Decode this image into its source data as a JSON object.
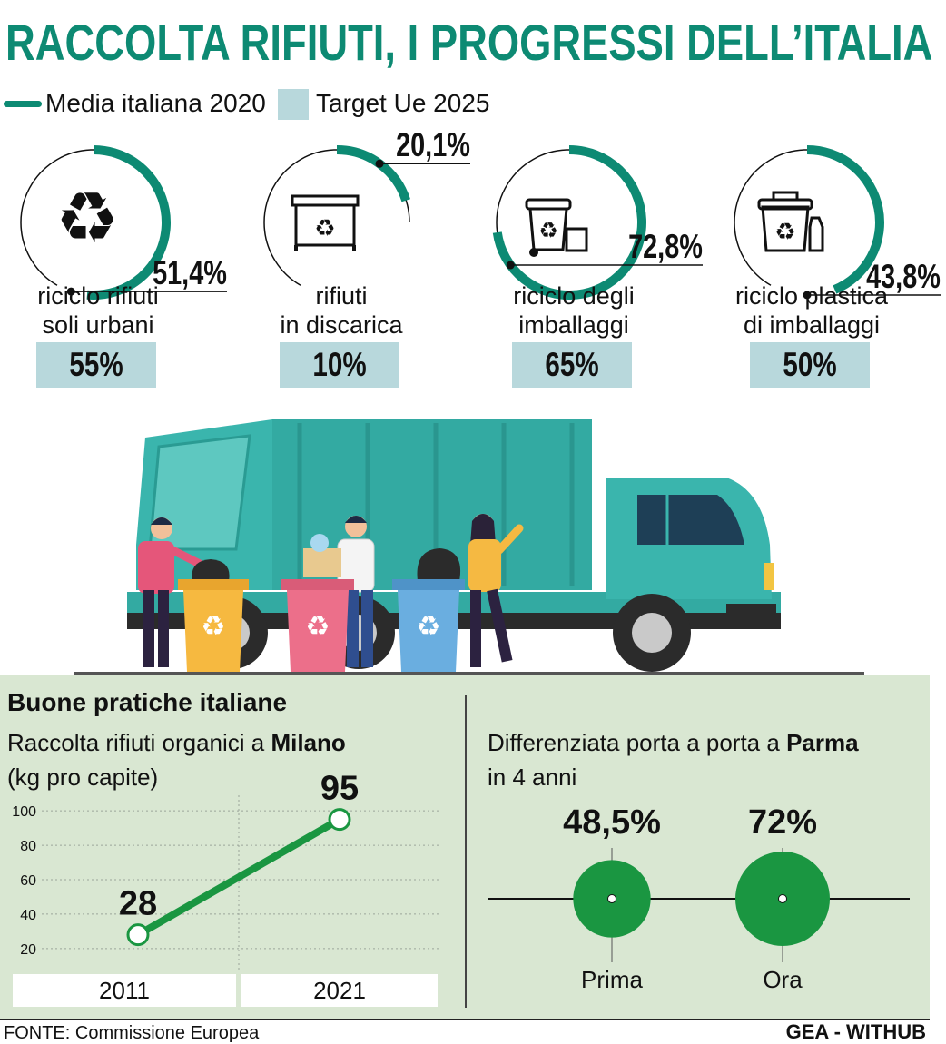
{
  "header": {
    "title": "RACCOLTA RIFIUTI, I PROGRESSI DELL’ITALIA"
  },
  "legend": {
    "line_label": "Media italiana 2020",
    "box_label": "Target Ue 2025"
  },
  "colors": {
    "teal": "#0d8a73",
    "target_box": "#b8d8dc",
    "panel_bg": "#d9e7d2",
    "green": "#1a9641",
    "bin_yellow": "#f6b940",
    "bin_pink": "#ec6f8a",
    "bin_blue": "#6aaee0",
    "truck": "#3ab5ad"
  },
  "chart_data": [
    {
      "type": "gauge",
      "title": "RACCOLTA RIFIUTI, I PROGRESSI DELL’ITALIA",
      "legend": [
        "Media italiana 2020",
        "Target Ue 2025"
      ],
      "items": [
        {
          "label_lines": [
            "riciclo rifiuti",
            "soli urbani"
          ],
          "value": 51.4,
          "value_label": "51,4%",
          "target": 55,
          "target_label": "55%",
          "icon": "recycle-symbol-icon"
        },
        {
          "label_lines": [
            "rifiuti",
            "in discarica"
          ],
          "value": 20.1,
          "value_label": "20,1%",
          "target": 10,
          "target_label": "10%",
          "icon": "dumpster-icon"
        },
        {
          "label_lines": [
            "riciclo degli",
            "imballaggi"
          ],
          "value": 72.8,
          "value_label": "72,8%",
          "target": 65,
          "target_label": "65%",
          "icon": "wheelie-bin-icon"
        },
        {
          "label_lines": [
            "riciclo plastica",
            "di imballaggi"
          ],
          "value": 43.8,
          "value_label": "43,8%",
          "target": 50,
          "target_label": "50%",
          "icon": "plastic-bin-icon"
        }
      ]
    },
    {
      "type": "line",
      "title": "Buone pratiche italiane",
      "subtitle_lines": [
        "Raccolta rifiuti organici a ",
        "Milano",
        "(kg pro capite)"
      ],
      "x": [
        "2011",
        "2021"
      ],
      "series": [
        {
          "values": [
            28,
            95
          ],
          "value_labels": [
            "28",
            "95"
          ]
        }
      ],
      "yticks": [
        20,
        40,
        60,
        80,
        100
      ],
      "ytick_labels": [
        "20",
        "40",
        "60",
        "80",
        "100"
      ],
      "ylim": [
        12,
        108
      ],
      "grid": true
    },
    {
      "type": "bubble",
      "subtitle_lines": [
        "Differenziata porta a porta a ",
        "Parma",
        "in 4 anni"
      ],
      "categories": [
        "Prima",
        "Ora"
      ],
      "values": [
        48.5,
        72
      ],
      "value_labels": [
        "48,5%",
        "72%"
      ]
    }
  ],
  "footer": {
    "source": "FONTE: Commissione Europea",
    "credit": "GEA - WITHUB"
  }
}
